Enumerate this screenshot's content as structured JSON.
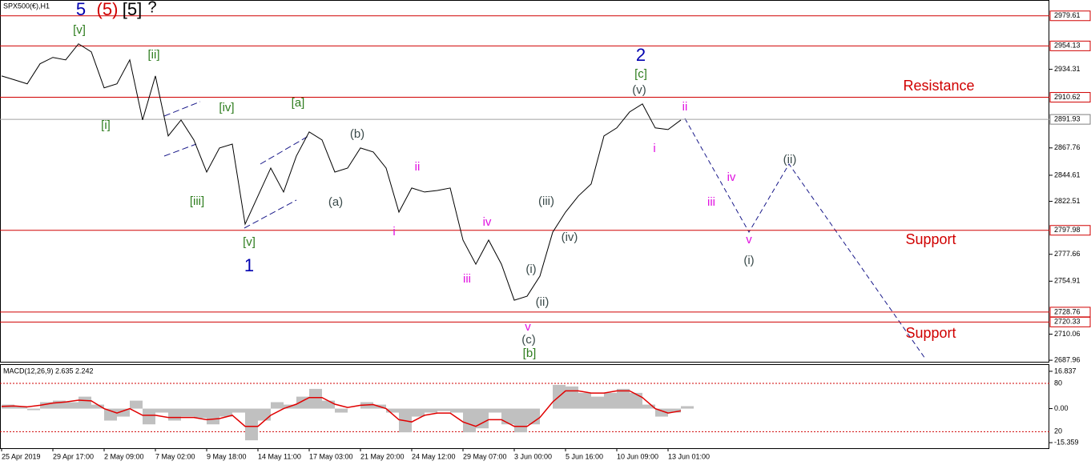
{
  "chart_data": [
    {
      "type": "line",
      "title": "SPX500(€),H1",
      "categories": [
        "25 Apr 2019",
        null,
        null,
        null,
        "29 Apr 17:00",
        null,
        null,
        null,
        "2 May 09:00",
        null,
        null,
        null,
        "7 May 02:00",
        null,
        null,
        null,
        "9 May 18:00",
        null,
        null,
        null,
        "14 May 11:00",
        null,
        null,
        null,
        "17 May 03:00",
        null,
        null,
        null,
        "21 May 20:00",
        null,
        null,
        null,
        "24 May 12:00",
        null,
        null,
        null,
        "29 May 07:00",
        null,
        null,
        null,
        "3 Jun 00:00",
        null,
        null,
        null,
        "5 Jun 16:00",
        null,
        null,
        null,
        "10 Jun 09:00",
        null,
        null,
        null,
        "13 Jun 01:00",
        null
      ],
      "series": [
        {
          "color": "#000000",
          "values": [
            2928.7,
            2925.4,
            2922,
            2939,
            2944.4,
            2942.3,
            2955.9,
            2949.1,
            2918.6,
            2922,
            2942.3,
            2891.4,
            2928.7,
            2877.9,
            2891.4,
            2874.5,
            2847.3,
            2867.7,
            2871,
            2803.2,
            2827,
            2850.7,
            2830.4,
            2860.9,
            2881.3,
            2874.5,
            2847.3,
            2850.7,
            2867.7,
            2864.3,
            2850.7,
            2813.4,
            2833.8,
            2830.4,
            2831.7,
            2833.8,
            2789.7,
            2769.3,
            2789.7,
            2769.3,
            2738.8,
            2742.2,
            2759.2,
            2796.4,
            2813.4,
            2827,
            2837.2,
            2877.9,
            2884.7,
            2898.2,
            2905,
            2884.7,
            2883.3,
            2891.4
          ]
        }
      ],
      "ylim": [
        2686,
        2993
      ],
      "yticks": [
        2934.31,
        2867.76,
        2844.61,
        2822.51,
        2777.66,
        2754.91,
        2710.06,
        2687.96
      ],
      "levels": [
        2979.61,
        2954.13,
        2910.62,
        2797.98,
        2728.76,
        2720.33
      ],
      "level_color": "#d00000",
      "last_price": 2891.93,
      "annotations": [
        {
          "text": "5",
          "color": "#0000b0"
        },
        {
          "text": "(5)",
          "color": "#d00000"
        },
        {
          "text": "[5]",
          "color": "#000000"
        },
        {
          "text": "?",
          "color": "#000000"
        },
        {
          "text": "[v]",
          "color": "#2e7d1e"
        },
        {
          "text": "[ii]",
          "color": "#2e7d1e"
        },
        {
          "text": "[i]",
          "color": "#2e7d1e"
        },
        {
          "text": "[iv]",
          "color": "#2e7d1e"
        },
        {
          "text": "[a]",
          "color": "#2e7d1e"
        },
        {
          "text": "[iii]",
          "color": "#2e7d1e"
        },
        {
          "text": "[v]",
          "color": "#2e7d1e"
        },
        {
          "text": "1",
          "color": "#0000b0"
        },
        {
          "text": "(b)",
          "color": "#3a4a4a"
        },
        {
          "text": "(a)",
          "color": "#3a4a4a"
        },
        {
          "text": "ii",
          "color": "#e010e0"
        },
        {
          "text": "i",
          "color": "#e010e0"
        },
        {
          "text": "iv",
          "color": "#e010e0"
        },
        {
          "text": "iii",
          "color": "#e010e0"
        },
        {
          "text": "(i)",
          "color": "#3a4a4a"
        },
        {
          "text": "(ii)",
          "color": "#3a4a4a"
        },
        {
          "text": "(iii)",
          "color": "#3a4a4a"
        },
        {
          "text": "(iv)",
          "color": "#3a4a4a"
        },
        {
          "text": "v",
          "color": "#e010e0"
        },
        {
          "text": "(c)",
          "color": "#3a4a4a"
        },
        {
          "text": "[b]",
          "color": "#2e7d1e"
        },
        {
          "text": "2",
          "color": "#0000b0"
        },
        {
          "text": "[c]",
          "color": "#2e7d1e"
        },
        {
          "text": "(v)",
          "color": "#3a4a4a"
        },
        {
          "text": "ii",
          "color": "#e010e0"
        },
        {
          "text": "i",
          "color": "#e010e0"
        },
        {
          "text": "iv",
          "color": "#e010e0"
        },
        {
          "text": "iii",
          "color": "#e010e0"
        },
        {
          "text": "v",
          "color": "#e010e0"
        },
        {
          "text": "(i)",
          "color": "#3a4a4a"
        },
        {
          "text": "(ii)",
          "color": "#3a4a4a"
        },
        {
          "text": "Resistance",
          "color": "#d00000"
        },
        {
          "text": "Support",
          "color": "#d00000"
        },
        {
          "text": "Support",
          "color": "#d00000"
        }
      ]
    },
    {
      "type": "macd",
      "title": "MACD(12,26,9) 2.635 2.242",
      "series": [
        {
          "color": "#c0c0c0",
          "values": [
            1.8,
            1.1,
            -0.7,
            2.9,
            3.6,
            2.9,
            5.4,
            1.8,
            -5.4,
            -3.6,
            3.6,
            -7.1,
            -1.8,
            -5.4,
            -3.6,
            -4.3,
            -7.1,
            -3.6,
            -1.8,
            -14.3,
            -5.4,
            2.9,
            1.8,
            5.4,
            8.9,
            3.6,
            -1.8,
            0,
            2.9,
            1.8,
            -1.8,
            -10.7,
            -3.6,
            -1.8,
            -1.1,
            -1.8,
            -10.7,
            -8.9,
            -1.8,
            -7.1,
            -10.7,
            -7.1,
            0,
            10.7,
            10,
            7.1,
            5.4,
            7.1,
            8.9,
            7.1,
            1.8,
            -3.6,
            -1.8,
            1.1
          ]
        },
        {
          "color": "#e00000",
          "values": [
            1,
            1.2,
            0.8,
            1.5,
            2.5,
            3,
            3.8,
            3.5,
            0,
            -2,
            0,
            -3,
            -3,
            -4,
            -4,
            -4,
            -5,
            -4.5,
            -3,
            -8,
            -8,
            -3,
            0,
            2,
            5,
            5,
            2,
            0.5,
            1.5,
            1.8,
            0,
            -5,
            -6,
            -3,
            -2,
            -2,
            -6,
            -8,
            -5,
            -5,
            -8,
            -8,
            -4,
            3,
            8,
            8,
            7,
            7,
            8,
            8,
            5,
            0,
            -2,
            -1
          ]
        }
      ],
      "ylim": [
        -17.86,
        19.7
      ],
      "yticks": [
        16.837,
        {
          "value": 0,
          "label": "0.00"
        },
        -15.359
      ],
      "levels": [
        {
          "value": 11.4,
          "label": "80"
        },
        {
          "value": -10.4,
          "label": "20"
        }
      ],
      "level_color": "#d00000"
    }
  ]
}
